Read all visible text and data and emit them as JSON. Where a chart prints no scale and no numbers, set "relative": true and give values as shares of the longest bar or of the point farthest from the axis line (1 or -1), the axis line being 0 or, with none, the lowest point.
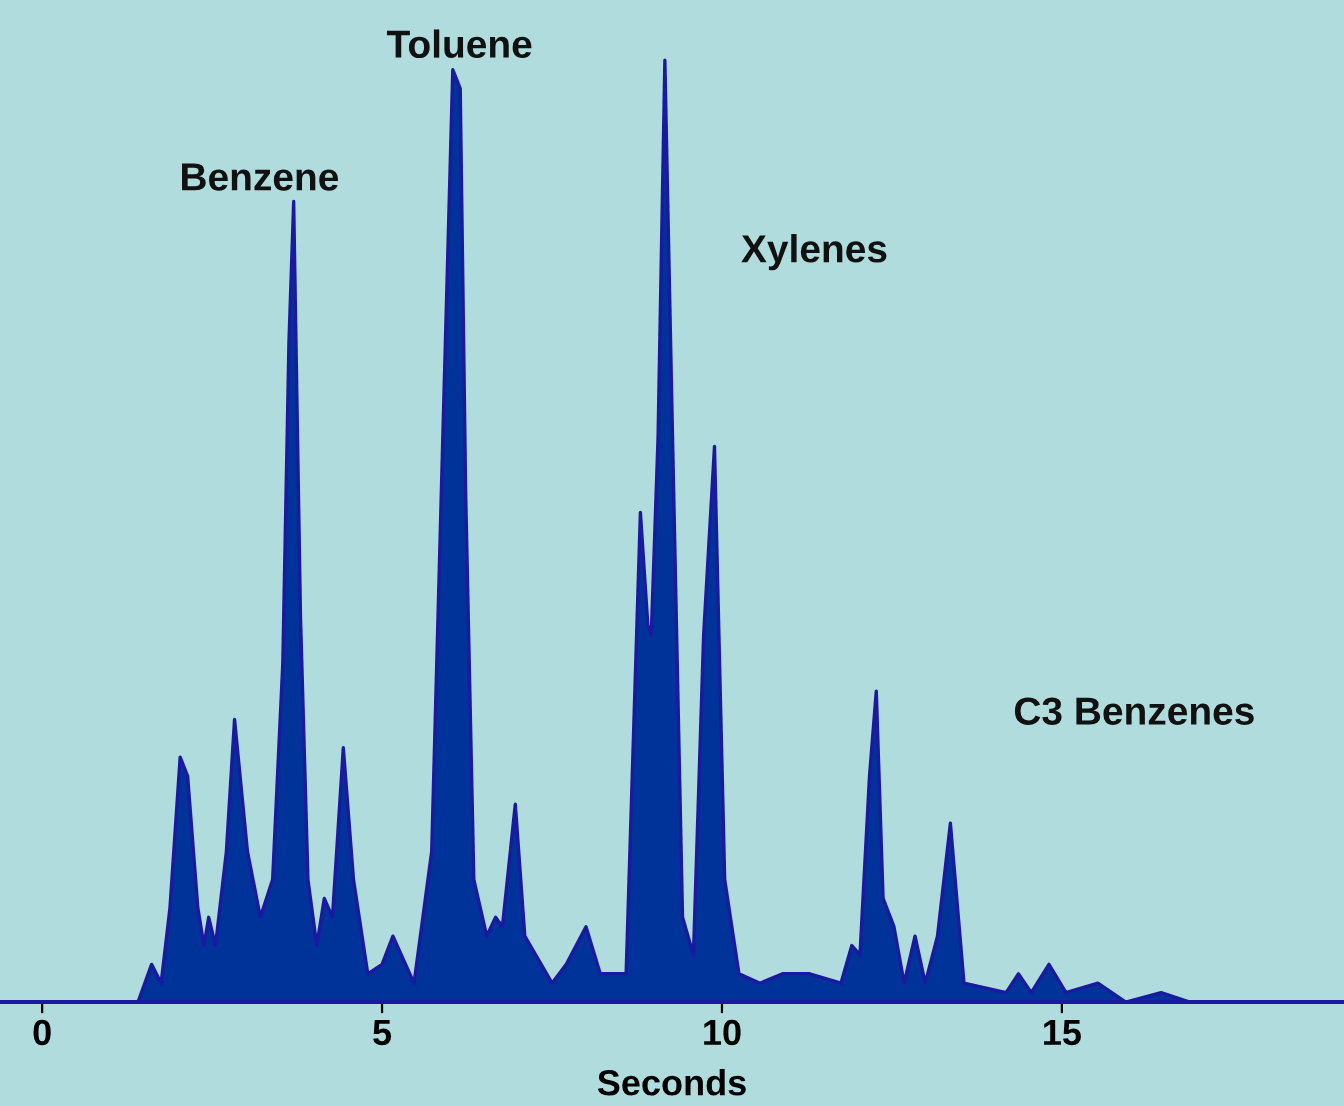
{
  "chart_data": {
    "type": "area",
    "relative": true,
    "xlabel": "Seconds",
    "xlim": [
      -0.62,
      19.15
    ],
    "xticks": [
      0,
      5,
      10,
      15
    ],
    "grid": false,
    "legend": false,
    "series": [
      {
        "color": "#003399",
        "x": [
          -0.62,
          1.41,
          1.61,
          1.75,
          1.88,
          2.03,
          2.14,
          2.29,
          2.38,
          2.45,
          2.55,
          2.71,
          2.83,
          3.02,
          3.21,
          3.39,
          3.54,
          3.63,
          3.7,
          3.8,
          3.91,
          4.04,
          4.15,
          4.27,
          4.43,
          4.58,
          4.79,
          5.0,
          5.16,
          5.47,
          5.73,
          5.89,
          6.04,
          6.15,
          6.23,
          6.35,
          6.54,
          6.67,
          6.77,
          6.96,
          7.1,
          7.5,
          7.71,
          8.0,
          8.21,
          8.59,
          8.8,
          8.91,
          8.96,
          9.06,
          9.16,
          9.27,
          9.42,
          9.58,
          9.73,
          9.89,
          10.04,
          10.25,
          10.56,
          10.89,
          11.29,
          11.75,
          11.91,
          12.03,
          12.17,
          12.27,
          12.37,
          12.53,
          12.68,
          12.84,
          12.99,
          13.17,
          13.36,
          13.56,
          14.18,
          14.36,
          14.55,
          14.81,
          15.06,
          15.53,
          15.94,
          16.46,
          16.88,
          19.15
        ],
        "values": [
          0,
          0,
          0.04,
          0.02,
          0.1,
          0.26,
          0.24,
          0.1,
          0.06,
          0.09,
          0.06,
          0.16,
          0.3,
          0.16,
          0.09,
          0.13,
          0.36,
          0.7,
          0.85,
          0.41,
          0.13,
          0.06,
          0.11,
          0.09,
          0.27,
          0.13,
          0.03,
          0.04,
          0.07,
          0.02,
          0.16,
          0.59,
          0.99,
          0.97,
          0.54,
          0.13,
          0.07,
          0.09,
          0.08,
          0.21,
          0.07,
          0.02,
          0.04,
          0.08,
          0.03,
          0.03,
          0.52,
          0.4,
          0.39,
          0.6,
          1.0,
          0.61,
          0.09,
          0.05,
          0.39,
          0.59,
          0.13,
          0.03,
          0.02,
          0.03,
          0.03,
          0.02,
          0.06,
          0.05,
          0.24,
          0.33,
          0.11,
          0.08,
          0.02,
          0.07,
          0.02,
          0.07,
          0.19,
          0.02,
          0.01,
          0.03,
          0.01,
          0.04,
          0.01,
          0.02,
          0,
          0.01,
          0,
          0
        ]
      }
    ],
    "annotations": [
      "Benzene",
      "Toluene",
      "Xylenes",
      "C3 Benzenes"
    ]
  }
}
